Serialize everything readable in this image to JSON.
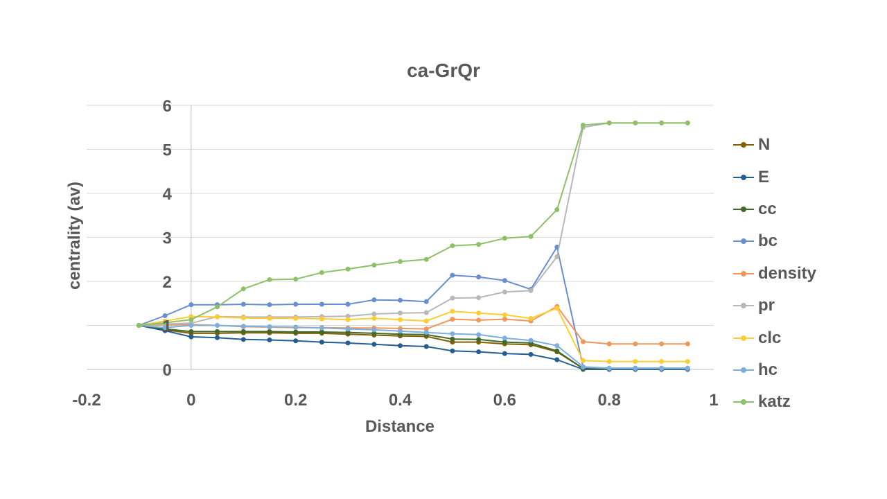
{
  "chart_data": {
    "type": "line",
    "title": "ca-GrQr",
    "xlabel": "Distance",
    "ylabel": "centrality (av)",
    "xlim": [
      -0.2,
      1
    ],
    "ylim": [
      0,
      6
    ],
    "x_ticks": [
      "-0.2",
      "0",
      "0.2",
      "0.4",
      "0.6",
      "0.8",
      "1"
    ],
    "y_ticks": [
      "0",
      "1",
      "2",
      "3",
      "4",
      "5",
      "6"
    ],
    "grid": true,
    "legend_position": "right",
    "x": [
      -0.1,
      -0.05,
      0,
      0.05,
      0.1,
      0.15,
      0.2,
      0.25,
      0.3,
      0.35,
      0.4,
      0.45,
      0.5,
      0.55,
      0.6,
      0.65,
      0.7,
      0.75,
      0.8,
      0.85,
      0.9,
      0.95
    ],
    "series": [
      {
        "name": "N",
        "color": "#806000",
        "values": [
          1,
          0.9,
          0.82,
          0.82,
          0.83,
          0.83,
          0.82,
          0.82,
          0.8,
          0.78,
          0.76,
          0.75,
          0.62,
          0.62,
          0.58,
          0.56,
          0.4,
          0.02,
          0.01,
          0.01,
          0.01,
          0.01
        ]
      },
      {
        "name": "E",
        "color": "#255E91",
        "values": [
          1,
          0.88,
          0.74,
          0.72,
          0.68,
          0.67,
          0.65,
          0.62,
          0.6,
          0.57,
          0.54,
          0.52,
          0.42,
          0.4,
          0.36,
          0.34,
          0.22,
          0,
          0,
          0,
          0,
          0
        ]
      },
      {
        "name": "cc",
        "color": "#43682B",
        "values": [
          1,
          0.92,
          0.86,
          0.86,
          0.86,
          0.86,
          0.85,
          0.85,
          0.84,
          0.82,
          0.8,
          0.79,
          0.69,
          0.68,
          0.62,
          0.6,
          0.42,
          0.02,
          0.01,
          0.01,
          0.01,
          0.01
        ]
      },
      {
        "name": "bc",
        "color": "#698ED0",
        "values": [
          1,
          1.22,
          1.47,
          1.47,
          1.48,
          1.47,
          1.48,
          1.48,
          1.48,
          1.58,
          1.57,
          1.54,
          2.14,
          2.1,
          2.02,
          1.82,
          2.78,
          0.05,
          0.02,
          0.02,
          0.02,
          0.02
        ]
      },
      {
        "name": "density",
        "color": "#F1975A",
        "values": [
          1,
          1.01,
          1.02,
          1.0,
          0.97,
          0.96,
          0.95,
          0.95,
          0.94,
          0.94,
          0.93,
          0.92,
          1.14,
          1.12,
          1.14,
          1.1,
          1.43,
          0.63,
          0.58,
          0.58,
          0.58,
          0.58
        ]
      },
      {
        "name": "pr",
        "color": "#B7B7B7",
        "values": [
          1,
          1.03,
          1.05,
          1.2,
          1.19,
          1.19,
          1.19,
          1.2,
          1.21,
          1.26,
          1.28,
          1.29,
          1.62,
          1.63,
          1.76,
          1.79,
          2.56,
          5.5,
          5.6,
          5.6,
          5.6,
          5.6
        ]
      },
      {
        "name": "clc",
        "color": "#FFCD33",
        "values": [
          1,
          1.1,
          1.2,
          1.19,
          1.17,
          1.16,
          1.16,
          1.15,
          1.13,
          1.16,
          1.13,
          1.1,
          1.32,
          1.28,
          1.24,
          1.16,
          1.39,
          0.2,
          0.18,
          0.18,
          0.18,
          0.18
        ]
      },
      {
        "name": "hc",
        "color": "#7CAFDD",
        "values": [
          1,
          0.95,
          1.0,
          1.0,
          0.98,
          0.97,
          0.96,
          0.94,
          0.92,
          0.9,
          0.87,
          0.84,
          0.81,
          0.79,
          0.71,
          0.66,
          0.54,
          0.06,
          0.03,
          0.03,
          0.03,
          0.03
        ]
      },
      {
        "name": "katz",
        "color": "#8CC168",
        "values": [
          1,
          1.06,
          1.13,
          1.42,
          1.83,
          2.04,
          2.05,
          2.2,
          2.28,
          2.37,
          2.45,
          2.5,
          2.81,
          2.84,
          2.98,
          3.02,
          3.63,
          5.55,
          5.6,
          5.6,
          5.6,
          5.6
        ]
      }
    ]
  }
}
